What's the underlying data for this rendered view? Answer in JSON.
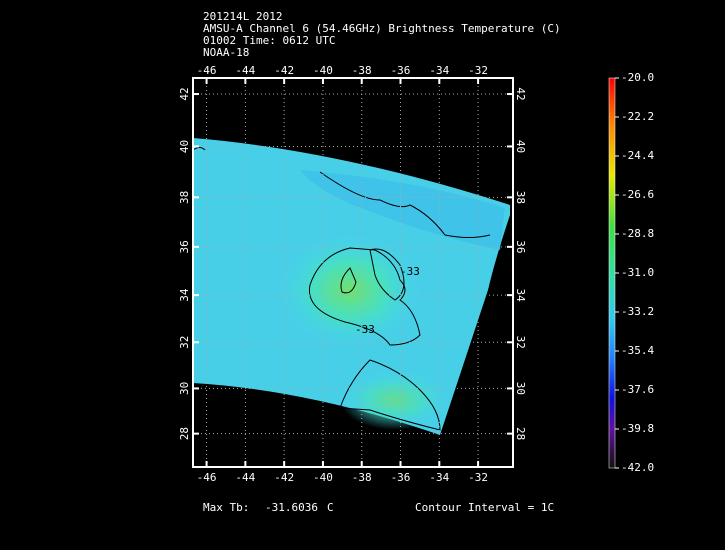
{
  "header": {
    "lines": [
      "201214L 2012",
      "AMSU-A Channel 6 (54.46GHz) Brightness Temperature (C)",
      "01002 Time: 0612 UTC",
      "NOAA-18"
    ]
  },
  "map": {
    "xlim": [
      -46.7,
      -30.2
    ],
    "ylim": [
      26.5,
      42.6
    ],
    "xticks": [
      -46,
      -44,
      -42,
      -40,
      -38,
      -36,
      -34,
      -32
    ],
    "yticks": [
      28,
      30,
      32,
      34,
      36,
      38,
      40,
      42
    ],
    "grid": true,
    "contour_labels": [
      "-33",
      "-33"
    ],
    "colorbar": {
      "lim": [
        -42,
        -20
      ],
      "ticks": [
        {
          "value": -20,
          "label": "-20.0"
        },
        {
          "value": -22.2,
          "label": "-22.2"
        },
        {
          "value": -24.4,
          "label": "-24.4"
        },
        {
          "value": -26.6,
          "label": "-26.6"
        },
        {
          "value": -28.8,
          "label": "-28.8"
        },
        {
          "value": -31,
          "label": "-31.0"
        },
        {
          "value": -33.2,
          "label": "-33.2"
        },
        {
          "value": -35.4,
          "label": "-35.4"
        },
        {
          "value": -37.6,
          "label": "-37.6"
        },
        {
          "value": -39.8,
          "label": "-39.8"
        },
        {
          "value": -42,
          "label": "-42.0"
        }
      ]
    }
  },
  "footer": {
    "max_tb_label": "Max Tb:",
    "max_tb_value": -31.6036,
    "max_tb_unit": "C",
    "contour_interval": "Contour Interval = 1C"
  }
}
